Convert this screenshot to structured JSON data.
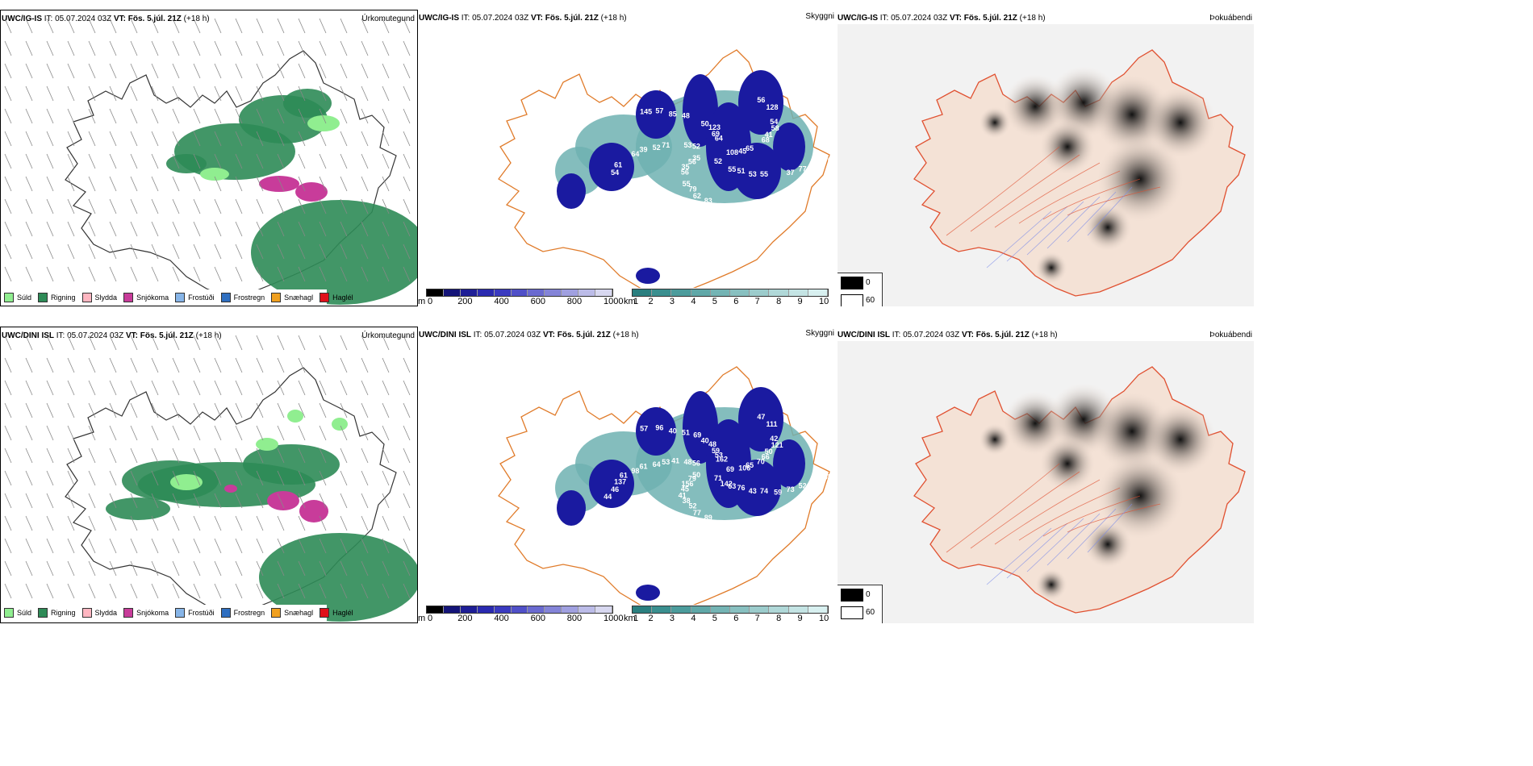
{
  "rows": [
    {
      "model": "UWC/IG-IS",
      "it_label": "IT:",
      "it_value": "05.07.2024 03Z",
      "vt_label": "VT:",
      "vt_value": "Fös. 5.júl. 21Z",
      "lead": "(+18 h)",
      "precip_title": "Úrkomutegund",
      "cloud_title": "Skyggni",
      "fog_title": "Þokuábendi",
      "cloud_numbers": [
        "108",
        "56",
        "69",
        "51",
        "52",
        "41",
        "79",
        "85",
        "77",
        "54",
        "56",
        "52",
        "53",
        "65",
        "56",
        "50",
        "55",
        "64",
        "54",
        "83",
        "145",
        "76",
        "35",
        "64",
        "55",
        "71",
        "68",
        "55",
        "48",
        "37",
        "61",
        "128",
        "50",
        "52",
        "45",
        "35",
        "123",
        "53",
        "39",
        "58",
        "62",
        "57",
        "46"
      ]
    },
    {
      "model": "UWC/DINI ISL",
      "it_label": "IT:",
      "it_value": "05.07.2024 03Z",
      "vt_label": "VT:",
      "vt_value": "Fös. 5.júl. 21Z",
      "lead": "(+18 h)",
      "precip_title": "Úrkomutegund",
      "cloud_title": "Skyggni",
      "fog_title": "Þokuábendi",
      "cloud_numbers": [
        "69",
        "79",
        "59",
        "76",
        "64",
        "50",
        "52",
        "40",
        "52",
        "46",
        "47",
        "71",
        "48",
        "65",
        "45",
        "40",
        "74",
        "98",
        "42",
        "89",
        "57",
        "65",
        "50",
        "53",
        "63",
        "53",
        "66",
        "38",
        "51",
        "73",
        "137",
        "111",
        "45",
        "56",
        "106",
        "156",
        "48",
        "43",
        "61",
        "121",
        "77",
        "96",
        "50",
        "44",
        "162",
        "142",
        "41",
        "70",
        "41",
        "69",
        "59",
        "61"
      ]
    }
  ],
  "precip_legend": [
    {
      "label": "Súld",
      "color": "#90ee90"
    },
    {
      "label": "Rigning",
      "color": "#2e8b57"
    },
    {
      "label": "Slydda",
      "color": "#ffb6c1"
    },
    {
      "label": "Snjókoma",
      "color": "#c83c9a"
    },
    {
      "label": "Frostúði",
      "color": "#87b5e8"
    },
    {
      "label": "Frostregn",
      "color": "#2f6fc0"
    },
    {
      "label": "Snæhagl",
      "color": "#f0a020"
    },
    {
      "label": "Haglél",
      "color": "#e0101a"
    }
  ],
  "cloud_base_bar": {
    "unit": "m",
    "ticks": [
      "0",
      "200",
      "400",
      "600",
      "800",
      "1000"
    ],
    "colors": [
      "#000000",
      "#141478",
      "#1e1e96",
      "#2a2ab0",
      "#3a3ac0",
      "#5050c8",
      "#6a6ad0",
      "#8484d8",
      "#a0a0e0",
      "#bcbce8",
      "#d8d8f0"
    ]
  },
  "visibility_bar": {
    "unit": "km",
    "ticks": [
      "1",
      "2",
      "3",
      "4",
      "5",
      "6",
      "7",
      "8",
      "9",
      "10"
    ],
    "colors": [
      "#2a7f7f",
      "#3a8f8f",
      "#4c9c9c",
      "#60a8a8",
      "#74b4b4",
      "#88c0c0",
      "#9ccccc",
      "#b0d8d8",
      "#c4e4e4",
      "#d8f0f0"
    ]
  },
  "fog_legend": [
    {
      "value": "0",
      "color": "#000000"
    },
    {
      "value": "60",
      "color": "#ffffff"
    }
  ]
}
